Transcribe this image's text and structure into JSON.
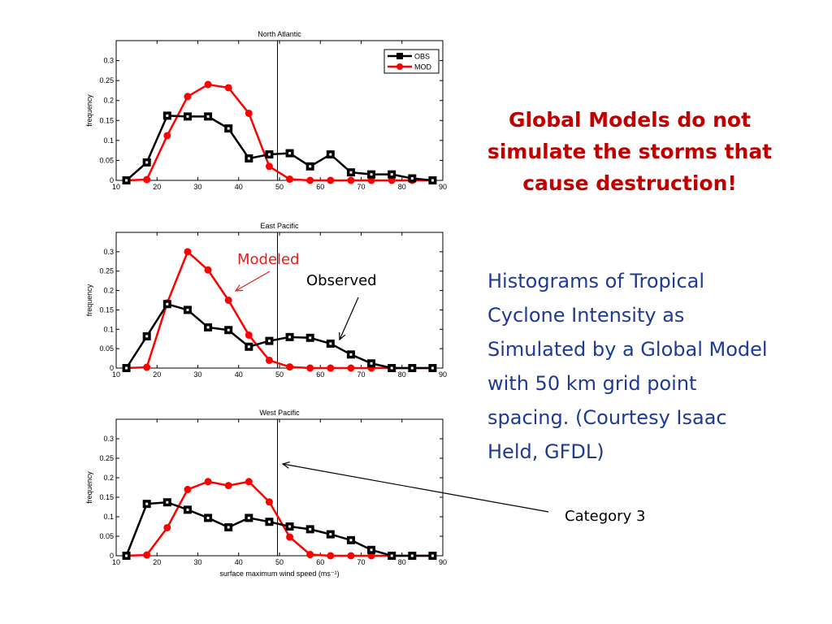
{
  "heading": "Global Models do not simulate the storms that cause destruction!",
  "body_text": "Histograms of Tropical Cyclone Intensity as Simulated by a Global Model with 50 km grid point spacing. (Courtesy Isaac Held, GFDL)",
  "callouts": {
    "modeled": "Modeled",
    "observed": "Observed",
    "category3": "Category 3"
  },
  "colors": {
    "obs": "#000000",
    "mod": "#ff0000",
    "modeled_callout": "#e02020",
    "heading": "#c00000",
    "body_text": "#1f3a93"
  },
  "chart_data": [
    {
      "type": "line",
      "title": "North Atlantic",
      "xlabel": "",
      "ylabel": "frequency",
      "xlim": [
        10,
        90
      ],
      "ylim": [
        0,
        0.35
      ],
      "xticks": [
        10,
        20,
        30,
        40,
        50,
        60,
        70,
        80,
        90
      ],
      "yticks": [
        0,
        0.05,
        0.1,
        0.15,
        0.2,
        0.25,
        0.3
      ],
      "vline_x": 49.5,
      "legend": "top-right",
      "x": [
        12.5,
        17.5,
        22.5,
        27.5,
        32.5,
        37.5,
        42.5,
        47.5,
        52.5,
        57.5,
        62.5,
        67.5,
        72.5,
        77.5,
        82.5,
        87.5
      ],
      "series": [
        {
          "name": "OBS",
          "color": "#000000",
          "marker": "square",
          "values": [
            0,
            0.045,
            0.162,
            0.16,
            0.16,
            0.13,
            0.055,
            0.065,
            0.068,
            0.035,
            0.065,
            0.02,
            0.015,
            0.015,
            0.005,
            0
          ]
        },
        {
          "name": "MOD",
          "color": "#ff0000",
          "marker": "circle",
          "values": [
            0,
            0.002,
            0.112,
            0.21,
            0.24,
            0.232,
            0.168,
            0.035,
            0.003,
            0,
            0,
            0,
            0,
            0,
            0,
            0
          ]
        }
      ]
    },
    {
      "type": "line",
      "title": "East Pacific",
      "xlabel": "",
      "ylabel": "frequency",
      "xlim": [
        10,
        90
      ],
      "ylim": [
        0,
        0.35
      ],
      "xticks": [
        10,
        20,
        30,
        40,
        50,
        60,
        70,
        80,
        90
      ],
      "yticks": [
        0,
        0.05,
        0.1,
        0.15,
        0.2,
        0.25,
        0.3
      ],
      "vline_x": 49.5,
      "x": [
        12.5,
        17.5,
        22.5,
        27.5,
        32.5,
        37.5,
        42.5,
        47.5,
        52.5,
        57.5,
        62.5,
        67.5,
        72.5,
        77.5,
        82.5,
        87.5
      ],
      "series": [
        {
          "color": "#000000",
          "marker": "square",
          "values": [
            0,
            0.082,
            0.165,
            0.15,
            0.105,
            0.098,
            0.055,
            0.07,
            0.08,
            0.078,
            0.063,
            0.035,
            0.012,
            0,
            0,
            0
          ]
        },
        {
          "color": "#ff0000",
          "marker": "circle",
          "values": [
            0,
            0.002,
            0.168,
            0.3,
            0.253,
            0.175,
            0.085,
            0.02,
            0.003,
            0,
            0,
            0,
            0,
            0,
            0,
            0
          ]
        }
      ]
    },
    {
      "type": "line",
      "title": "West Pacific",
      "xlabel": "surface maximum wind speed (ms⁻¹)",
      "ylabel": "frequency",
      "xlim": [
        10,
        90
      ],
      "ylim": [
        0,
        0.35
      ],
      "xticks": [
        10,
        20,
        30,
        40,
        50,
        60,
        70,
        80,
        90
      ],
      "yticks": [
        0,
        0.05,
        0.1,
        0.15,
        0.2,
        0.25,
        0.3
      ],
      "vline_x": 49.5,
      "x": [
        12.5,
        17.5,
        22.5,
        27.5,
        32.5,
        37.5,
        42.5,
        47.5,
        52.5,
        57.5,
        62.5,
        67.5,
        72.5,
        77.5,
        82.5,
        87.5
      ],
      "series": [
        {
          "color": "#000000",
          "marker": "square",
          "values": [
            0,
            0.133,
            0.137,
            0.118,
            0.097,
            0.073,
            0.097,
            0.087,
            0.075,
            0.068,
            0.055,
            0.04,
            0.015,
            0,
            0,
            0
          ]
        },
        {
          "color": "#ff0000",
          "marker": "circle",
          "values": [
            0,
            0.002,
            0.072,
            0.17,
            0.19,
            0.18,
            0.19,
            0.138,
            0.048,
            0.003,
            0,
            0,
            0,
            0,
            0,
            0
          ]
        }
      ]
    }
  ]
}
